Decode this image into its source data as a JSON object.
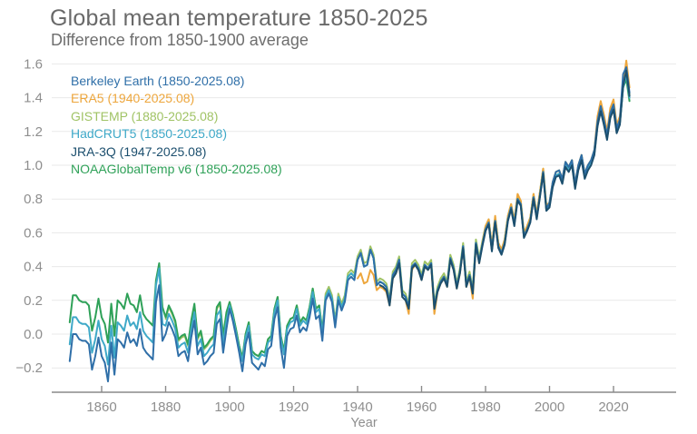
{
  "header": {
    "title": "Global mean temperature 1850-2025",
    "subtitle": "Difference from 1850-1900 average"
  },
  "chart_data": {
    "type": "line",
    "title": "Global mean temperature 1850-2025",
    "subtitle": "Difference from 1850-1900 average",
    "xlabel": "Year",
    "ylabel": "",
    "xlim": [
      1845,
      2033
    ],
    "ylim": [
      -0.35,
      1.65
    ],
    "x_ticks": [
      1860,
      1880,
      1900,
      1920,
      1940,
      1960,
      1980,
      2000,
      2020
    ],
    "y_ticks": [
      -0.2,
      0.0,
      0.2,
      0.4,
      0.6,
      0.8,
      1.0,
      1.2,
      1.4,
      1.6
    ],
    "grid": "horizontal",
    "legend_position": "top-left",
    "axis_color": "#8e8e8e",
    "grid_color": "#e9e9e9",
    "draw_order": [
      "gistemp",
      "era5",
      "noaa",
      "hadcrut5",
      "berkeley",
      "jra3q"
    ],
    "series": [
      {
        "key": "berkeley",
        "label": "Berkeley Earth (1850-2025.08)",
        "color": "#2f6fa8",
        "start_year": 1850,
        "values": [
          -0.16,
          0.0,
          0.0,
          -0.03,
          -0.04,
          -0.04,
          -0.06,
          -0.21,
          -0.13,
          -0.02,
          -0.13,
          -0.17,
          -0.28,
          -0.05,
          -0.24,
          -0.03,
          -0.05,
          -0.08,
          0.01,
          -0.05,
          -0.03,
          -0.07,
          0.03,
          -0.08,
          -0.11,
          -0.13,
          -0.15,
          0.19,
          0.29,
          -0.04,
          0.0,
          0.07,
          0.03,
          -0.02,
          -0.13,
          -0.11,
          -0.1,
          -0.16,
          -0.02,
          0.08,
          -0.12,
          -0.08,
          -0.18,
          -0.16,
          -0.13,
          -0.11,
          0.06,
          0.09,
          -0.11,
          0.03,
          0.15,
          0.08,
          -0.01,
          -0.11,
          -0.22,
          -0.06,
          0.01,
          -0.17,
          -0.19,
          -0.21,
          -0.17,
          -0.19,
          -0.09,
          -0.07,
          0.09,
          0.16,
          -0.08,
          -0.2,
          -0.01,
          0.03,
          0.04,
          0.11,
          0.01,
          0.04,
          0.02,
          0.1,
          0.21,
          0.09,
          0.11,
          -0.04,
          0.2,
          0.24,
          0.19,
          0.04,
          0.2,
          0.14,
          0.19,
          0.32,
          0.34,
          0.32,
          0.44,
          0.48,
          0.4,
          0.41,
          0.5,
          0.45,
          0.29,
          0.31,
          0.3,
          0.28,
          0.19,
          0.35,
          0.38,
          0.44,
          0.24,
          0.22,
          0.16,
          0.4,
          0.42,
          0.39,
          0.33,
          0.41,
          0.39,
          0.42,
          0.16,
          0.26,
          0.31,
          0.34,
          0.29,
          0.45,
          0.39,
          0.28,
          0.37,
          0.52,
          0.29,
          0.35,
          0.25,
          0.54,
          0.43,
          0.53,
          0.62,
          0.66,
          0.5,
          0.67,
          0.52,
          0.48,
          0.54,
          0.68,
          0.75,
          0.65,
          0.8,
          0.77,
          0.58,
          0.62,
          0.67,
          0.81,
          0.69,
          0.82,
          0.96,
          0.74,
          0.78,
          0.9,
          0.96,
          0.97,
          0.92,
          1.02,
          0.99,
          1.03,
          0.89,
          1.0,
          1.06,
          0.95,
          1.0,
          1.03,
          1.09,
          1.26,
          1.35,
          1.27,
          1.18,
          1.31,
          1.36,
          1.22,
          1.27,
          1.54,
          1.58,
          1.43
        ]
      },
      {
        "key": "era5",
        "label": "ERA5 (1940-2025.08)",
        "color": "#eda63c",
        "start_year": 1940,
        "values": [
          0.33,
          0.36,
          0.3,
          0.31,
          0.38,
          0.35,
          0.26,
          0.28,
          0.27,
          0.25,
          0.17,
          0.33,
          0.36,
          0.42,
          0.22,
          0.2,
          0.12,
          0.38,
          0.41,
          0.38,
          0.32,
          0.4,
          0.38,
          0.41,
          0.12,
          0.25,
          0.3,
          0.33,
          0.28,
          0.44,
          0.38,
          0.27,
          0.36,
          0.51,
          0.28,
          0.34,
          0.21,
          0.53,
          0.42,
          0.54,
          0.64,
          0.68,
          0.52,
          0.7,
          0.54,
          0.5,
          0.56,
          0.7,
          0.77,
          0.67,
          0.83,
          0.79,
          0.6,
          0.64,
          0.69,
          0.83,
          0.71,
          0.84,
          0.98,
          0.76,
          0.78,
          0.9,
          0.96,
          0.97,
          0.92,
          1.02,
          0.99,
          1.03,
          0.89,
          1.0,
          1.06,
          0.95,
          1.0,
          1.03,
          1.09,
          1.29,
          1.38,
          1.3,
          1.2,
          1.34,
          1.39,
          1.24,
          1.29,
          1.48,
          1.62,
          1.46
        ]
      },
      {
        "key": "gistemp",
        "label": "GISTEMP (1880-2025.08)",
        "color": "#a0c365",
        "start_year": 1880,
        "values": [
          0.09,
          0.16,
          0.12,
          0.07,
          -0.04,
          -0.02,
          -0.01,
          -0.07,
          0.07,
          0.17,
          -0.03,
          0.01,
          -0.09,
          -0.07,
          -0.04,
          -0.02,
          0.15,
          0.18,
          -0.02,
          0.12,
          0.19,
          0.12,
          0.03,
          -0.07,
          -0.14,
          0.0,
          0.07,
          -0.1,
          -0.12,
          -0.13,
          -0.1,
          -0.11,
          -0.03,
          -0.01,
          0.15,
          0.22,
          -0.01,
          -0.1,
          0.05,
          0.09,
          0.1,
          0.17,
          0.07,
          0.1,
          0.08,
          0.16,
          0.27,
          0.15,
          0.17,
          0.02,
          0.24,
          0.28,
          0.23,
          0.08,
          0.24,
          0.18,
          0.23,
          0.36,
          0.38,
          0.36,
          0.46,
          0.5,
          0.42,
          0.43,
          0.52,
          0.47,
          0.31,
          0.33,
          0.32,
          0.3,
          0.21,
          0.37,
          0.4,
          0.46,
          0.26,
          0.24,
          0.18,
          0.42,
          0.44,
          0.41,
          0.35,
          0.43,
          0.41,
          0.44,
          0.18,
          0.28,
          0.33,
          0.36,
          0.31,
          0.47,
          0.41,
          0.3,
          0.39,
          0.54,
          0.31,
          0.37,
          0.27,
          0.56,
          0.45,
          0.55,
          0.64,
          0.68,
          0.52,
          0.69,
          0.54,
          0.5,
          0.56,
          0.7,
          0.77,
          0.67,
          0.82,
          0.79,
          0.6,
          0.64,
          0.69,
          0.83,
          0.71,
          0.84,
          0.98,
          0.76,
          0.78,
          0.9,
          0.96,
          0.97,
          0.92,
          1.02,
          0.99,
          1.03,
          0.89,
          1.0,
          1.06,
          0.95,
          1.0,
          1.03,
          1.09,
          1.26,
          1.35,
          1.27,
          1.18,
          1.31,
          1.36,
          1.22,
          1.27,
          1.5,
          1.55,
          1.42
        ]
      },
      {
        "key": "hadcrut5",
        "label": "HadCRUT5 (1850-2025.08)",
        "color": "#3fa9c8",
        "start_year": 1850,
        "values": [
          -0.06,
          0.1,
          0.1,
          0.07,
          0.06,
          0.06,
          0.04,
          -0.11,
          -0.03,
          0.08,
          -0.03,
          -0.07,
          -0.18,
          0.05,
          -0.14,
          0.07,
          0.05,
          0.02,
          0.11,
          0.05,
          0.07,
          0.03,
          0.13,
          0.02,
          -0.01,
          -0.03,
          -0.05,
          0.29,
          0.39,
          0.06,
          0.05,
          0.12,
          0.08,
          0.03,
          -0.08,
          -0.06,
          -0.05,
          -0.11,
          0.03,
          0.13,
          -0.07,
          -0.03,
          -0.13,
          -0.11,
          -0.08,
          -0.06,
          0.11,
          0.14,
          -0.06,
          0.08,
          0.17,
          0.1,
          0.01,
          -0.09,
          -0.16,
          -0.02,
          0.05,
          -0.12,
          -0.14,
          -0.15,
          -0.12,
          -0.13,
          -0.05,
          -0.03,
          0.13,
          0.2,
          -0.03,
          -0.12,
          0.03,
          0.07,
          0.08,
          0.15,
          0.05,
          0.08,
          0.06,
          0.14,
          0.25,
          0.13,
          0.15,
          0.0,
          0.22,
          0.26,
          0.21,
          0.06,
          0.22,
          0.16,
          0.21,
          0.34,
          0.36,
          0.34,
          0.44,
          0.48,
          0.4,
          0.41,
          0.5,
          0.45,
          0.29,
          0.31,
          0.3,
          0.28,
          0.19,
          0.35,
          0.38,
          0.44,
          0.24,
          0.22,
          0.16,
          0.4,
          0.42,
          0.39,
          0.33,
          0.41,
          0.39,
          0.42,
          0.16,
          0.26,
          0.31,
          0.34,
          0.29,
          0.45,
          0.39,
          0.28,
          0.37,
          0.52,
          0.29,
          0.35,
          0.25,
          0.54,
          0.43,
          0.53,
          0.62,
          0.66,
          0.5,
          0.67,
          0.52,
          0.48,
          0.54,
          0.68,
          0.75,
          0.65,
          0.8,
          0.77,
          0.58,
          0.62,
          0.67,
          0.81,
          0.69,
          0.82,
          0.96,
          0.74,
          0.76,
          0.88,
          0.94,
          0.95,
          0.9,
          1.0,
          0.97,
          1.01,
          0.87,
          0.98,
          1.04,
          0.93,
          0.98,
          1.01,
          1.07,
          1.24,
          1.33,
          1.25,
          1.16,
          1.29,
          1.34,
          1.2,
          1.25,
          1.46,
          1.54,
          1.4
        ]
      },
      {
        "key": "jra3q",
        "label": "JRA-3Q (1947-2025.08)",
        "color": "#1c4f6e",
        "start_year": 1947,
        "values": [
          0.29,
          0.28,
          0.26,
          0.17,
          0.33,
          0.36,
          0.42,
          0.22,
          0.2,
          0.15,
          0.39,
          0.41,
          0.38,
          0.32,
          0.4,
          0.38,
          0.41,
          0.15,
          0.25,
          0.3,
          0.33,
          0.28,
          0.44,
          0.38,
          0.27,
          0.36,
          0.51,
          0.28,
          0.34,
          0.24,
          0.53,
          0.42,
          0.52,
          0.61,
          0.65,
          0.49,
          0.66,
          0.51,
          0.47,
          0.53,
          0.67,
          0.74,
          0.64,
          0.79,
          0.76,
          0.57,
          0.61,
          0.66,
          0.8,
          0.68,
          0.81,
          0.95,
          0.73,
          0.75,
          0.87,
          0.93,
          0.94,
          0.89,
          0.99,
          0.96,
          1.0,
          0.86,
          0.97,
          1.03,
          0.92,
          0.97,
          1.0,
          1.06,
          1.23,
          1.32,
          1.24,
          1.15,
          1.28,
          1.33,
          1.19,
          1.24,
          1.47,
          1.56,
          1.41
        ]
      },
      {
        "key": "noaa",
        "label": "NOAAGlobalTemp v6 (1850-2025.08)",
        "color": "#2fa158",
        "start_year": 1850,
        "values": [
          0.07,
          0.23,
          0.23,
          0.2,
          0.19,
          0.19,
          0.17,
          0.02,
          0.1,
          0.21,
          0.1,
          0.06,
          -0.05,
          0.18,
          -0.01,
          0.2,
          0.18,
          0.15,
          0.24,
          0.18,
          0.17,
          0.13,
          0.23,
          0.12,
          0.09,
          0.07,
          0.05,
          0.32,
          0.42,
          0.16,
          0.1,
          0.17,
          0.13,
          0.08,
          -0.03,
          -0.01,
          0.0,
          -0.06,
          0.08,
          0.18,
          -0.02,
          0.02,
          -0.08,
          -0.06,
          -0.03,
          -0.01,
          0.16,
          0.19,
          -0.01,
          0.13,
          0.19,
          0.12,
          0.03,
          -0.07,
          -0.14,
          0.0,
          0.07,
          -0.1,
          -0.12,
          -0.13,
          -0.1,
          -0.11,
          -0.03,
          -0.01,
          0.15,
          0.22,
          -0.01,
          -0.1,
          0.05,
          0.09,
          0.1,
          0.17,
          0.07,
          0.1,
          0.08,
          0.16,
          0.27,
          0.15,
          0.17,
          0.02,
          0.22,
          0.26,
          0.21,
          0.06,
          0.22,
          0.16,
          0.21,
          0.34,
          0.36,
          0.34,
          0.44,
          0.48,
          0.4,
          0.41,
          0.5,
          0.45,
          0.29,
          0.31,
          0.3,
          0.28,
          0.19,
          0.35,
          0.38,
          0.44,
          0.24,
          0.22,
          0.16,
          0.4,
          0.42,
          0.39,
          0.33,
          0.41,
          0.39,
          0.42,
          0.16,
          0.26,
          0.31,
          0.34,
          0.29,
          0.45,
          0.39,
          0.28,
          0.37,
          0.52,
          0.29,
          0.35,
          0.25,
          0.54,
          0.43,
          0.53,
          0.62,
          0.66,
          0.5,
          0.67,
          0.52,
          0.48,
          0.54,
          0.68,
          0.75,
          0.65,
          0.8,
          0.77,
          0.58,
          0.62,
          0.67,
          0.81,
          0.69,
          0.82,
          0.96,
          0.74,
          0.76,
          0.88,
          0.94,
          0.95,
          0.9,
          1.0,
          0.97,
          1.01,
          0.87,
          0.98,
          1.04,
          0.93,
          0.98,
          1.01,
          1.07,
          1.24,
          1.33,
          1.25,
          1.16,
          1.29,
          1.34,
          1.2,
          1.25,
          1.46,
          1.51,
          1.38
        ]
      }
    ]
  }
}
